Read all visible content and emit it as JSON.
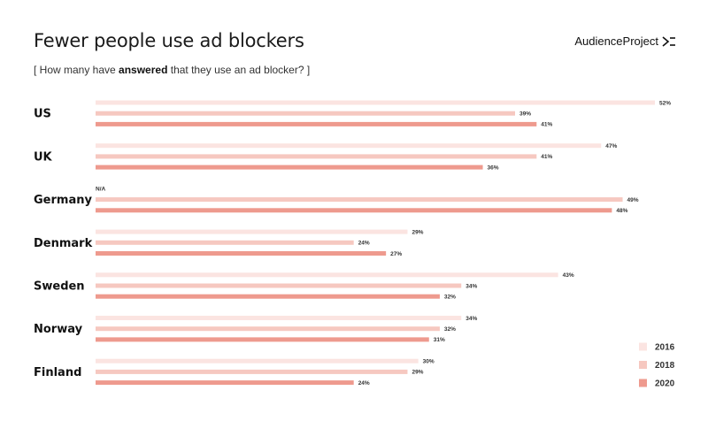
{
  "header": {
    "title": "Fewer people use ad blockers",
    "subtitle_prefix": "[ How many have ",
    "subtitle_bold": "answered",
    "subtitle_suffix": " that they use an ad blocker? ]",
    "logo_text": "AudienceProject"
  },
  "colors": {
    "2016": "#fbe4e1",
    "2018": "#f6c8c0",
    "2020": "#ee9a8e"
  },
  "chart_data": {
    "type": "bar",
    "orientation": "horizontal",
    "title": "Fewer people use ad blockers",
    "subtitle": "[ How many have answered that they use an ad blocker? ]",
    "categories": [
      "US",
      "UK",
      "Germany",
      "Denmark",
      "Sweden",
      "Norway",
      "Finland"
    ],
    "series": [
      {
        "name": "2016",
        "values": [
          52,
          47,
          null,
          29,
          43,
          34,
          30
        ],
        "labels": [
          "52%",
          "47%",
          "N/A",
          "29%",
          "43%",
          "34%",
          "30%"
        ]
      },
      {
        "name": "2018",
        "values": [
          39,
          41,
          49,
          24,
          34,
          32,
          29
        ],
        "labels": [
          "39%",
          "41%",
          "49%",
          "24%",
          "34%",
          "32%",
          "29%"
        ]
      },
      {
        "name": "2020",
        "values": [
          41,
          36,
          48,
          27,
          32,
          31,
          24
        ],
        "labels": [
          "41%",
          "36%",
          "48%",
          "27%",
          "32%",
          "31%",
          "24%"
        ]
      }
    ],
    "unit": "%",
    "xlim": [
      0,
      52
    ],
    "legend_position": "bottom-right",
    "grid": false
  }
}
